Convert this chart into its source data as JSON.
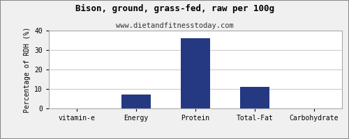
{
  "title": "Bison, ground, grass-fed, raw per 100g",
  "subtitle": "www.dietandfitnesstoday.com",
  "categories": [
    "vitamin-e",
    "Energy",
    "Protein",
    "Total-Fat",
    "Carbohydrate"
  ],
  "values": [
    0,
    7,
    36,
    11,
    0
  ],
  "bar_color": "#253882",
  "ylabel": "Percentage of RDH (%)",
  "ylim": [
    0,
    40
  ],
  "yticks": [
    0,
    10,
    20,
    30,
    40
  ],
  "background_color": "#f0f0f0",
  "plot_bg_color": "#ffffff",
  "title_fontsize": 9,
  "subtitle_fontsize": 7.5,
  "tick_fontsize": 7,
  "ylabel_fontsize": 7,
  "grid_color": "#cccccc",
  "border_color": "#aaaaaa"
}
